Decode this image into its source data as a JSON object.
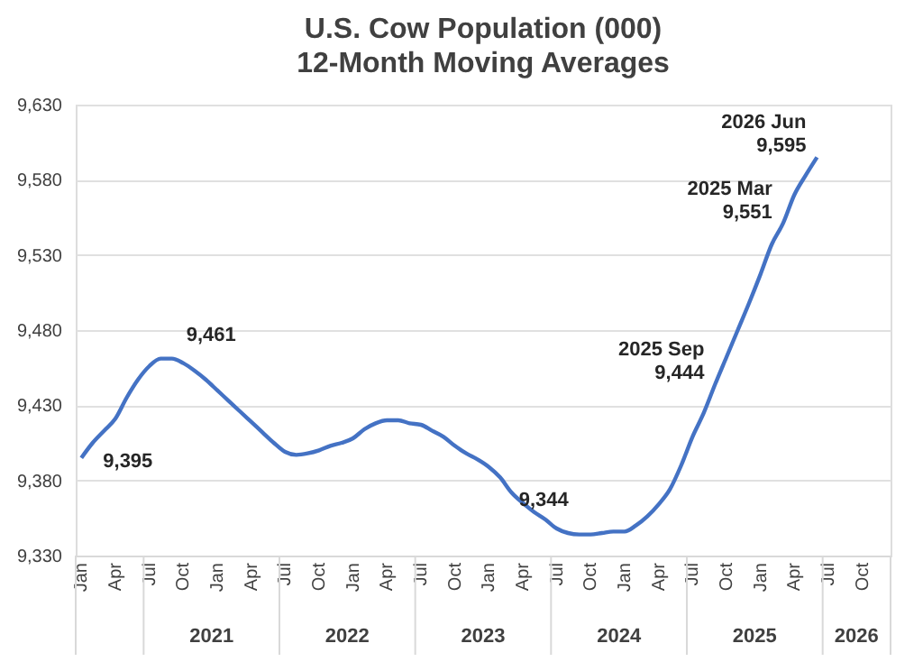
{
  "chart_data": {
    "type": "line",
    "title": "U.S. Cow Population (000)",
    "subtitle": "12-Month Moving Averages",
    "categories": [
      "Jan",
      null,
      null,
      "Apr",
      null,
      null,
      "Jul",
      null,
      null,
      "Oct",
      null,
      null,
      "Jan",
      null,
      null,
      "Apr",
      null,
      null,
      "Jul",
      null,
      null,
      "Oct",
      null,
      null,
      "Jan",
      null,
      null,
      "Apr",
      null,
      null,
      "Jul",
      null,
      null,
      "Oct",
      null,
      null,
      "Jan",
      null,
      null,
      "Apr",
      null,
      null,
      "Jul",
      null,
      null,
      "Oct",
      null,
      null,
      "Jan",
      null,
      null,
      "Apr",
      null,
      null,
      "Jul",
      null,
      null,
      "Oct",
      null,
      null,
      "Jan",
      null,
      null,
      "Apr",
      null,
      null,
      "Jul",
      null,
      null,
      "Oct",
      null,
      null
    ],
    "series": [
      {
        "color": "#4472c4",
        "values": [
          9395,
          9405,
          9413,
          9421,
          9435,
          9447,
          9456,
          9461,
          9461,
          9458,
          9453,
          9447,
          9440,
          9433,
          9426,
          9419,
          9412,
          9405,
          9399,
          9397,
          9398,
          9400,
          9403,
          9405,
          9408,
          9414,
          9418,
          9420,
          9420,
          9418,
          9417,
          9413,
          9409,
          9403,
          9398,
          9394,
          9389,
          9382,
          9372,
          9365,
          9359,
          9354,
          9348,
          9345,
          9344,
          9344,
          9345,
          9346,
          9346,
          9350,
          9356,
          9364,
          9374,
          9390,
          9409,
          9425,
          9444,
          9462,
          9480,
          9498,
          9517,
          9537,
          9551,
          9570,
          9583,
          9595,
          null,
          null,
          null,
          null,
          null,
          null
        ],
        "value_labels": [
          "9,395",
          null,
          null,
          null,
          null,
          null,
          null,
          null,
          "9,461",
          null,
          null,
          null,
          null,
          null,
          null,
          null,
          null,
          null,
          null,
          null,
          null,
          null,
          null,
          null,
          null,
          null,
          null,
          null,
          null,
          null,
          null,
          null,
          null,
          null,
          null,
          null,
          null,
          null,
          null,
          null,
          null,
          null,
          null,
          null,
          "9,344",
          null,
          null,
          null,
          null,
          null,
          null,
          null,
          null,
          null,
          null,
          null,
          "2025 Sep\n9,444",
          null,
          null,
          null,
          null,
          null,
          "2025 Mar\n9,551",
          null,
          null,
          "2026 Jun\n9,595",
          null,
          null,
          null,
          null,
          null,
          null
        ]
      }
    ],
    "annotations": [
      "2021",
      "2022",
      "2023",
      "2024",
      "2025",
      "2026"
    ],
    "ylim": [
      9330,
      9630
    ],
    "yticks": [
      {
        "value": 9330,
        "label": "9,330"
      },
      {
        "value": 9380,
        "label": "9,380"
      },
      {
        "value": 9430,
        "label": "9,430"
      },
      {
        "value": 9480,
        "label": "9,480"
      },
      {
        "value": 9530,
        "label": "9,530"
      },
      {
        "value": 9580,
        "label": "9,580"
      },
      {
        "value": 9630,
        "label": "9,630"
      }
    ],
    "grid": "y",
    "marker": "none",
    "line_style": "solid"
  }
}
